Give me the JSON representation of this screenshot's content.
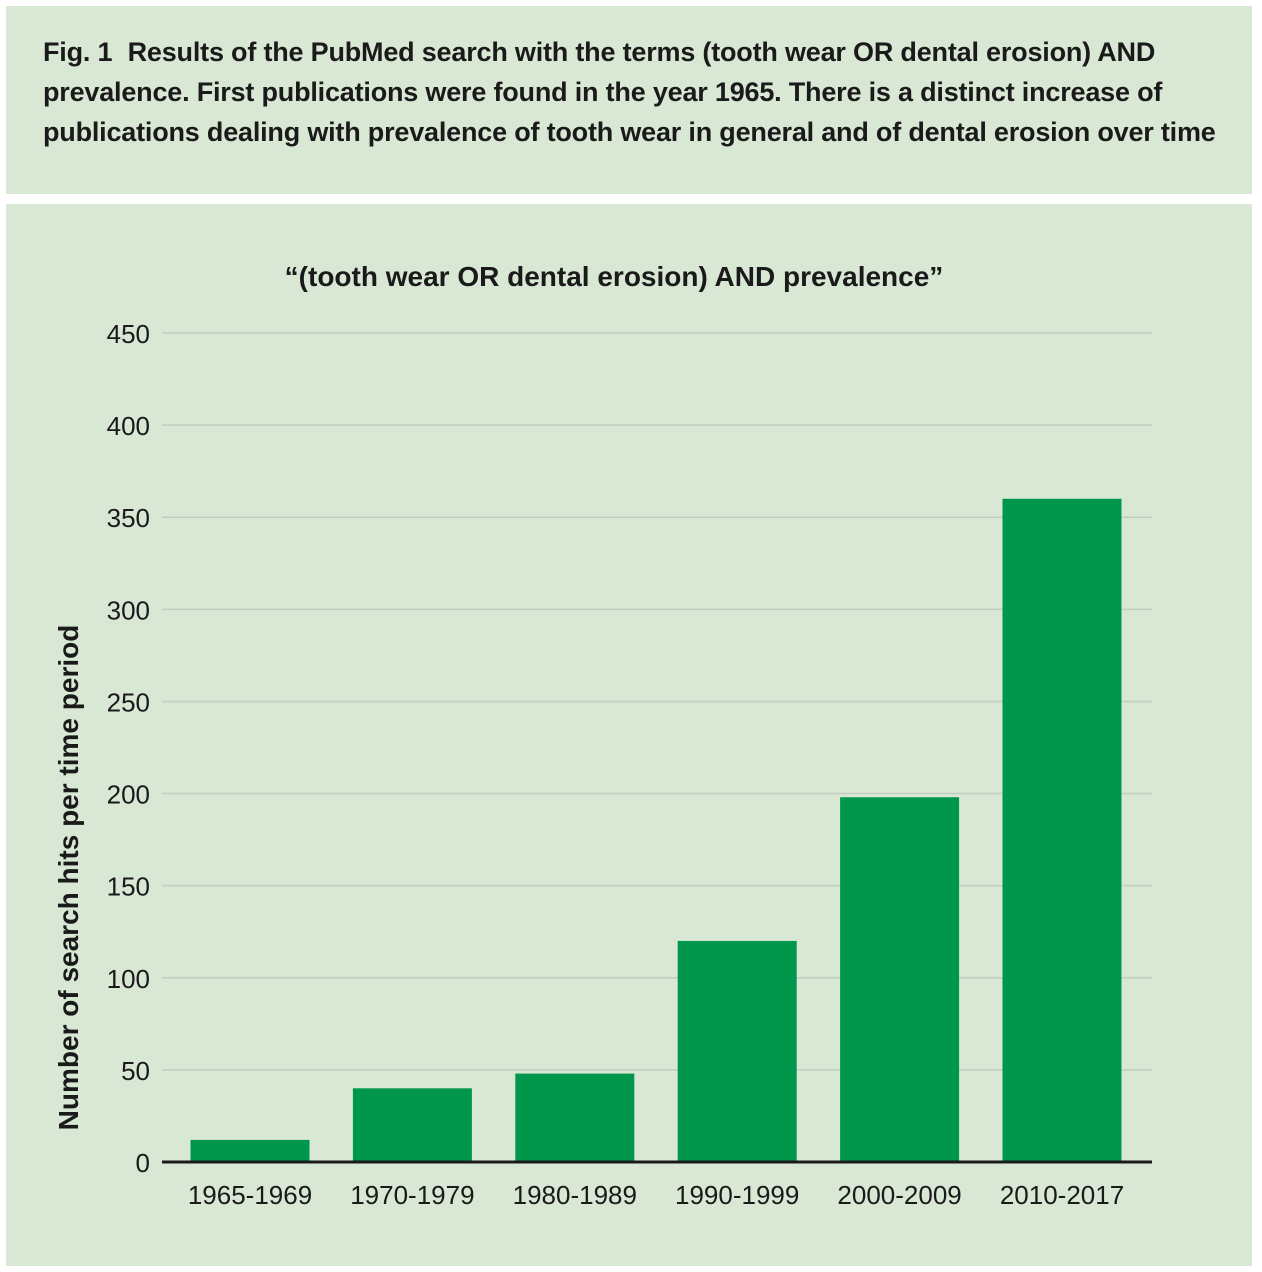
{
  "caption": {
    "label": "Fig. 1",
    "text": "Results of the PubMed search with the terms (tooth wear OR dental erosion) AND prevalence. First publications were found in the year 1965. There is a distinct increase of publications dealing with prevalence of tooth wear in general and of dental erosion over time"
  },
  "colors": {
    "panel_bg": "#d9e8d5",
    "bar": "#00964b",
    "grid": "#bfcfbe",
    "axis": "#1a1a1a"
  },
  "chart_data": {
    "type": "bar",
    "title": "“(tooth wear OR dental erosion) AND prevalence”",
    "xlabel": "",
    "ylabel": "Number of search hits per time period",
    "categories": [
      "1965-1969",
      "1970-1979",
      "1980-1989",
      "1990-1999",
      "2000-2009",
      "2010-2017"
    ],
    "values": [
      12,
      40,
      48,
      120,
      198,
      360
    ],
    "ylim": [
      0,
      450
    ],
    "yticks": [
      0,
      50,
      100,
      150,
      200,
      250,
      300,
      350,
      400,
      450
    ],
    "grid": true,
    "legend": "none"
  }
}
